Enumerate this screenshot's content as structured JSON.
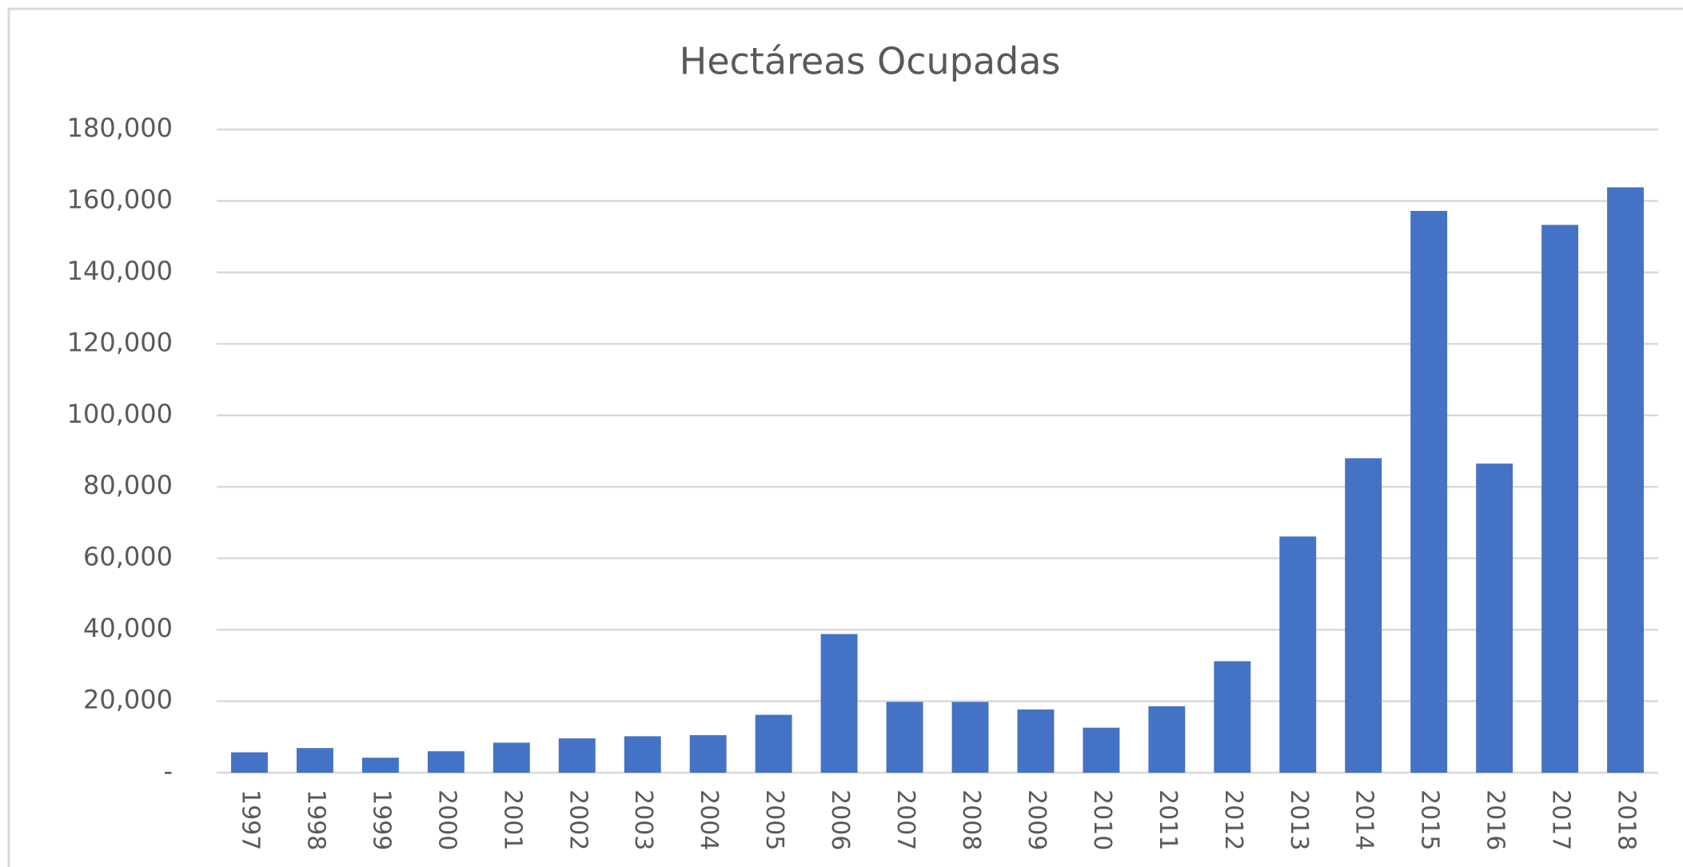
{
  "chart_data": {
    "type": "bar",
    "title": "Hectáreas Ocupadas",
    "categories": [
      "1997",
      "1998",
      "1999",
      "2000",
      "2001",
      "2002",
      "2003",
      "2004",
      "2005",
      "2006",
      "2007",
      "2008",
      "2009",
      "2010",
      "2011",
      "2012",
      "2013",
      "2014",
      "2015",
      "2016",
      "2017",
      "2018"
    ],
    "values": [
      5700,
      6900,
      4200,
      6000,
      8400,
      9600,
      10200,
      10500,
      16200,
      38800,
      19800,
      19800,
      17700,
      12600,
      18600,
      31200,
      66100,
      88000,
      157200,
      86500,
      153300,
      163800
    ],
    "color": "#4472c4",
    "ylim": [
      0,
      180000
    ],
    "yticks": [
      {
        "value": 0,
        "label": "-"
      },
      {
        "value": 20000,
        "label": "20,000"
      },
      {
        "value": 40000,
        "label": "40,000"
      },
      {
        "value": 60000,
        "label": "60,000"
      },
      {
        "value": 80000,
        "label": "80,000"
      },
      {
        "value": 100000,
        "label": "100,000"
      },
      {
        "value": 120000,
        "label": "120,000"
      },
      {
        "value": 140000,
        "label": "140,000"
      },
      {
        "value": 160000,
        "label": "160,000"
      },
      {
        "value": 180000,
        "label": "180,000"
      }
    ],
    "grid": true
  }
}
